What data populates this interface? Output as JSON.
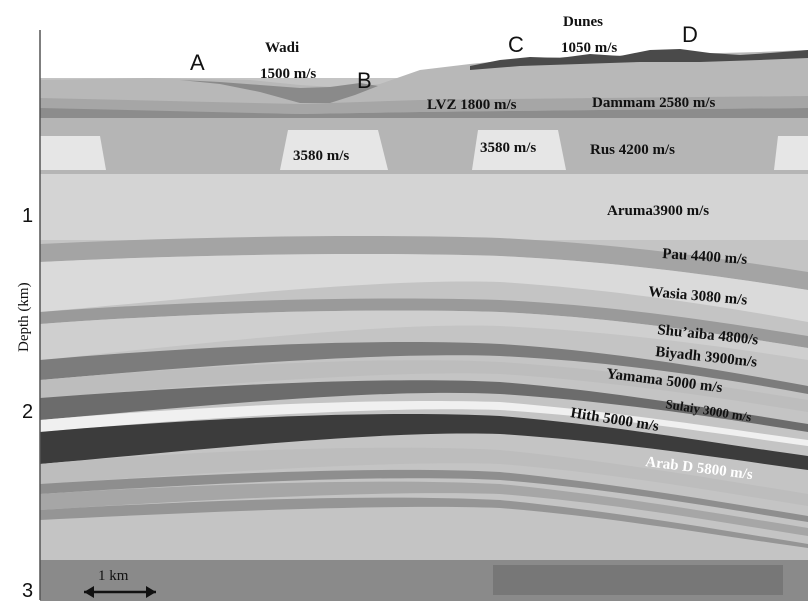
{
  "figure": {
    "point_labels": {
      "a": "A",
      "b": "B",
      "c": "C",
      "d": "D"
    },
    "surface": {
      "wadi_name": "Wadi",
      "wadi_velocity": "1500 m/s",
      "dunes_name": "Dunes",
      "dunes_velocity": "1050 m/s"
    },
    "layers": {
      "lvz": "LVZ 1800 m/s",
      "dammam": "Dammam 2580 m/s",
      "lens_left": "3580 m/s",
      "lens_right": "3580 m/s",
      "rus": "Rus 4200 m/s",
      "aruma": "Aruma3900 m/s",
      "pau": "Pau 4400 m/s",
      "wasia": "Wasia 3080 m/s",
      "shuaiba": "Shu’aiba 4800/s",
      "biyadh": "Biyadh 3900m/s",
      "yamama": "Yamama 5000 m/s",
      "sulaiy": "Sulaiy 3000 m/s",
      "hith": "Hith 5000 m/s",
      "arab_d": "Arab D 5800 m/s"
    },
    "axis": {
      "label": "Depth (km)",
      "tick_1": "1",
      "tick_2": "2",
      "tick_3": "3"
    },
    "scale_bar": "1 km",
    "colors": {
      "background": "#c4c4c4",
      "light_layer": "#dcdcdc",
      "mid_layer": "#9a9a9a",
      "dark_layer": "#5e5e5e",
      "hith_band": "#3c3c3c",
      "dunes": "#4a4a4a",
      "bottom_band": "#8a8a8a"
    }
  }
}
